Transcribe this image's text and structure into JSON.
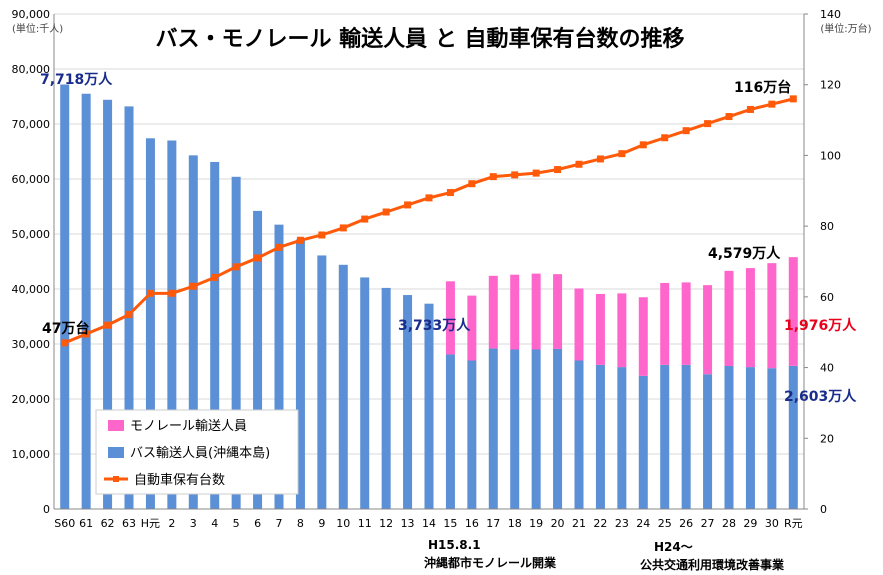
{
  "chart_data": {
    "type": "bar",
    "title": "バス・モノレール 輸送人員 と 自動車保有台数の推移",
    "left_unit": "(単位:千人)",
    "right_unit": "(単位:万台)",
    "ylim": [
      0,
      90000
    ],
    "y2lim": [
      0,
      140
    ],
    "left_ticks": [
      "0",
      "10,000",
      "20,000",
      "30,000",
      "40,000",
      "50,000",
      "60,000",
      "70,000",
      "80,000",
      "90,000"
    ],
    "right_ticks": [
      "0",
      "20",
      "40",
      "60",
      "80",
      "100",
      "120",
      "140"
    ],
    "categories": [
      "S60",
      "61",
      "62",
      "63",
      "H元",
      "2",
      "3",
      "4",
      "5",
      "6",
      "7",
      "8",
      "9",
      "10",
      "11",
      "12",
      "13",
      "14",
      "15",
      "16",
      "17",
      "18",
      "19",
      "20",
      "21",
      "22",
      "23",
      "24",
      "25",
      "26",
      "27",
      "28",
      "29",
      "30",
      "R元"
    ],
    "series": [
      {
        "name": "バス輸送人員(沖縄本島)",
        "color": "#5b8fd6",
        "values": [
          77180,
          75500,
          74400,
          73200,
          67400,
          67000,
          64300,
          63100,
          60400,
          54200,
          51700,
          49000,
          46100,
          44400,
          42100,
          40200,
          38900,
          37330,
          28100,
          27000,
          29200,
          29000,
          29000,
          29100,
          27000,
          26200,
          25800,
          24200,
          26200,
          26200,
          24500,
          26000,
          25800,
          25600,
          26030
        ]
      },
      {
        "name": "モノレール輸送人員",
        "color": "#ff66cc",
        "values": [
          0,
          0,
          0,
          0,
          0,
          0,
          0,
          0,
          0,
          0,
          0,
          0,
          0,
          0,
          0,
          0,
          0,
          0,
          13300,
          11800,
          13200,
          13600,
          13800,
          13600,
          13100,
          12900,
          13400,
          14300,
          14900,
          15000,
          16200,
          17300,
          18000,
          19100,
          19760
        ]
      },
      {
        "name": "自動車保有台数",
        "color": "#ff5a0a",
        "axis": "right",
        "values": [
          47,
          49.5,
          52,
          55,
          61,
          61,
          63,
          65.5,
          68.5,
          71,
          74,
          76,
          77.5,
          79.5,
          82,
          84,
          86,
          88,
          89.5,
          92,
          94,
          94.5,
          95,
          96,
          97.5,
          99,
          100.5,
          103,
          105,
          107,
          109,
          111,
          113,
          114.5,
          116
        ]
      }
    ],
    "annotations": {
      "bus_start": "7,718万人",
      "car_start": "47万台",
      "car_end": "116万台",
      "bus_h14": "3,733万人",
      "total_end": "4,579万人",
      "mono_end": "1,976万人",
      "bus_end": "2,603万人"
    },
    "notes": {
      "h15_date": "H15.8.1",
      "h15_text": "沖縄都市モノレール開業",
      "h24_date": "H24～",
      "h24_text": "公共交通利用環境改善事業"
    }
  }
}
